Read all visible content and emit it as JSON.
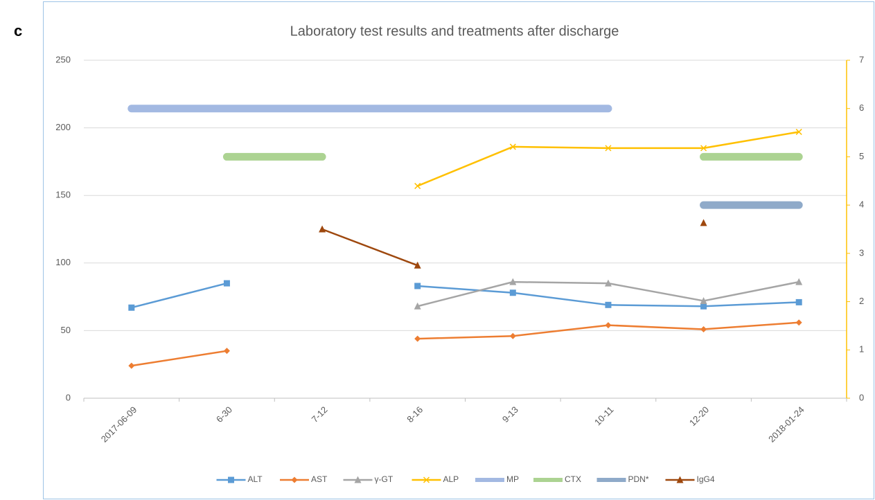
{
  "chart_data": {
    "type": "line",
    "panel_label": "c",
    "title": "Laboratory test results and treatments after discharge",
    "categories": [
      "2017-06-09",
      "6-30",
      "7-12",
      "8-16",
      "9-13",
      "10-11",
      "12-20",
      "2018-01-24"
    ],
    "ylim": [
      0,
      250
    ],
    "yticks": [
      0,
      50,
      100,
      150,
      200,
      250
    ],
    "y2lim": [
      0,
      7
    ],
    "y2ticks": [
      0,
      1,
      2,
      3,
      4,
      5,
      6,
      7
    ],
    "y2_axis_color": "#ffc000",
    "grid": true,
    "legend": "bottom",
    "series": [
      {
        "name": "ALT",
        "color": "#5b9bd5",
        "marker": "square",
        "axis": "y",
        "values": [
          67,
          85,
          null,
          83,
          78,
          69,
          68,
          71
        ]
      },
      {
        "name": "AST",
        "color": "#ed7d31",
        "marker": "diamond",
        "axis": "y",
        "values": [
          24,
          35,
          null,
          44,
          46,
          54,
          51,
          56
        ]
      },
      {
        "name": "γ-GT",
        "color": "#a5a5a5",
        "marker": "triangle",
        "axis": "y",
        "values": [
          null,
          null,
          null,
          68,
          86,
          85,
          72,
          86
        ]
      },
      {
        "name": "ALP",
        "color": "#ffc000",
        "marker": "x",
        "axis": "y",
        "values": [
          null,
          null,
          null,
          157,
          186,
          185,
          185,
          197
        ]
      },
      {
        "name": "MP",
        "color": "#a3b9e2",
        "marker": "none",
        "line_width": 11,
        "axis": "y2",
        "values": [
          6,
          6,
          6,
          6,
          6,
          6,
          null,
          null
        ]
      },
      {
        "name": "CTX",
        "color": "#acd392",
        "marker": "none",
        "line_width": 11,
        "axis": "y2",
        "values": [
          null,
          5,
          5,
          null,
          null,
          null,
          5,
          5
        ]
      },
      {
        "name": "PDN*",
        "color": "#8faac9",
        "marker": "none",
        "line_width": 11,
        "axis": "y2",
        "values": [
          null,
          null,
          null,
          null,
          null,
          null,
          4,
          4
        ]
      },
      {
        "name": "IgG4",
        "color": "#9e480e",
        "marker": "triangle",
        "axis": "y2",
        "values": [
          null,
          null,
          3.5,
          2.75,
          null,
          null,
          3.63,
          null
        ]
      }
    ]
  }
}
